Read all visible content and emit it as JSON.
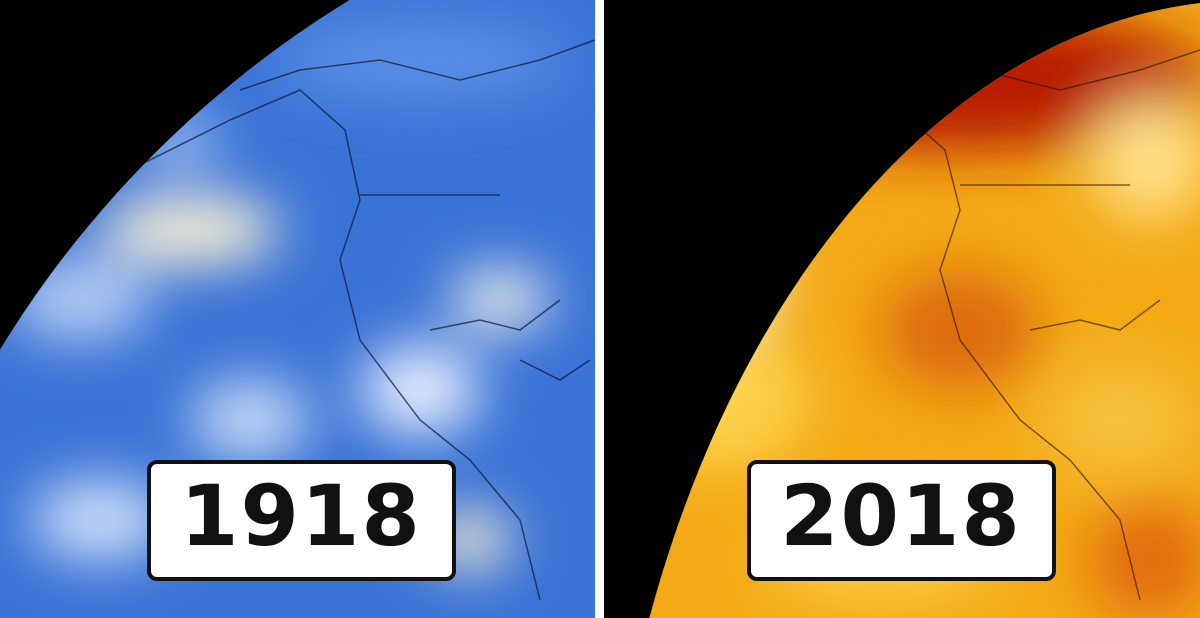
{
  "panels": [
    {
      "label": "1918"
    },
    {
      "label": "2018"
    }
  ]
}
